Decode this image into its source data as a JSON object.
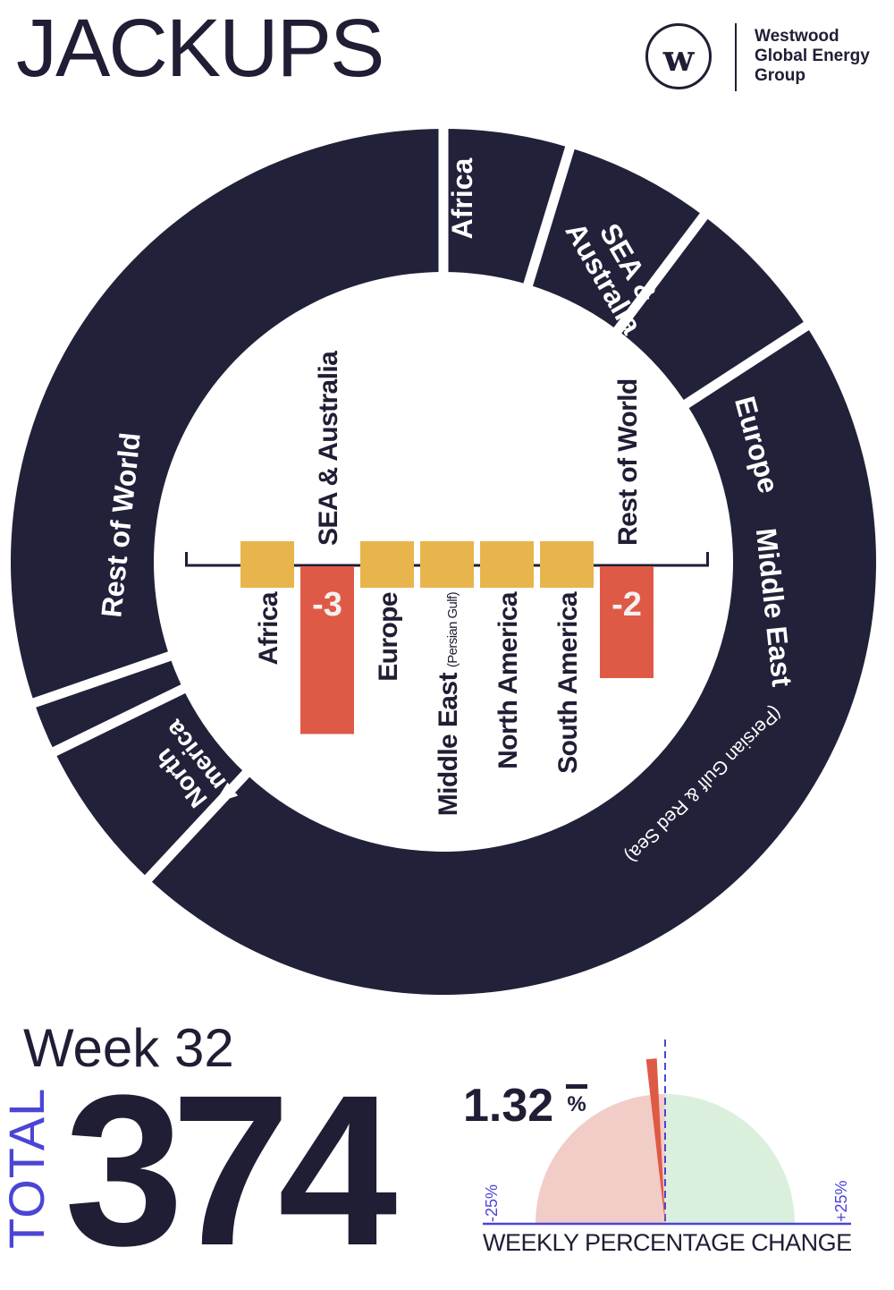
{
  "header": {
    "title": "JACKUPS",
    "logo": {
      "mark": "w",
      "lines": [
        "Westwood",
        "Global Energy",
        "Group"
      ]
    }
  },
  "chart_data": [
    {
      "type": "pie",
      "style": "donut",
      "segments": [
        {
          "label": "Africa"
        },
        {
          "label": "SEA & Australia"
        },
        {
          "label": "Europe"
        },
        {
          "label": "Middle East",
          "sublabel": "(Persian Gulf & Red Sea)"
        },
        {
          "label": "North America"
        },
        {
          "label": ""
        },
        {
          "label": "Rest of World"
        }
      ],
      "colors": {
        "segment": "#22213a",
        "gap": "#ffffff"
      }
    },
    {
      "type": "bar",
      "categories": [
        "Africa",
        "SEA & Australia",
        "Europe",
        "Middle East (Persian Gulf)",
        "North America",
        "South America",
        "Rest of World"
      ],
      "labels": [
        {
          "text": "Africa",
          "small": ""
        },
        {
          "text": "SEA & Australia",
          "small": ""
        },
        {
          "text": "Europe",
          "small": ""
        },
        {
          "text": "Middle East",
          "small": "(Persian Gulf)"
        },
        {
          "text": "North America",
          "small": ""
        },
        {
          "text": "South America",
          "small": ""
        },
        {
          "text": "Rest of World",
          "small": ""
        }
      ],
      "values": [
        0,
        -3,
        0,
        0,
        0,
        0,
        -2
      ],
      "value_labels": [
        "",
        "-3",
        "",
        "",
        "",
        "",
        "-2"
      ],
      "colors": {
        "zero": "#e8b54d",
        "negative": "#df5a46"
      }
    },
    {
      "type": "gauge",
      "value": -1.32,
      "range": [
        -25,
        25
      ],
      "min_label": "-25%",
      "max_label": "+25%",
      "caption": "WEEKLY PERCENTAGE CHANGE",
      "colors": {
        "negative": "#f2ccc6",
        "positive": "#dbf0dc",
        "needle": "#df5a46",
        "axis": "#4b45d6"
      }
    }
  ],
  "summary": {
    "week": "Week 32",
    "total_label": "TOTAL",
    "total_value": "374",
    "pct_value": "1.32",
    "pct_sign": "%"
  },
  "colors": {
    "navy": "#1f1e34",
    "accent": "#4b45d6"
  }
}
